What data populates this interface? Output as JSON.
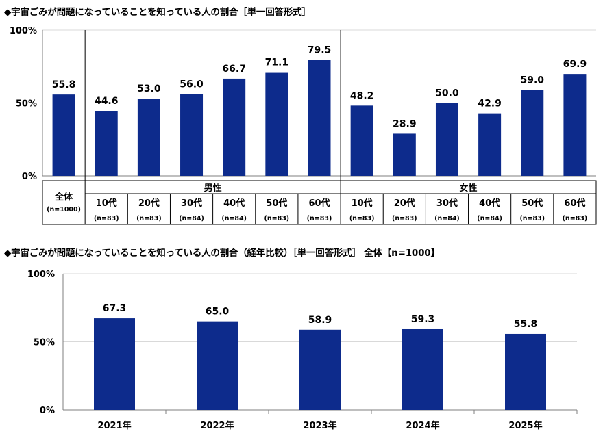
{
  "chart1_title": "◆宇宙ごみが問題になっていることを知っている人の割合［単一回答形式］",
  "chart2_title": "◆宇宙ごみが問題になっていることを知っている人の割合（経年比較）［単一回答形式］ 全体【n=1000】",
  "colors": {
    "bar": "#0d2b8c",
    "grid": "#d9d9d9",
    "axis": "#7f7f7f",
    "divider": "#000000"
  },
  "chart_data": [
    {
      "type": "bar",
      "y_ticks": [
        "0%",
        "50%",
        "100%"
      ],
      "ylim": [
        0,
        100
      ],
      "grid": true,
      "overall": {
        "label": "全体",
        "n": "(n=1000)",
        "value": 55.8,
        "value_label": "55.8"
      },
      "groups": [
        {
          "name": "男性",
          "categories": [
            "10代",
            "20代",
            "30代",
            "40代",
            "50代",
            "60代"
          ],
          "n": [
            "(n=83)",
            "(n=83)",
            "(n=84)",
            "(n=84)",
            "(n=83)",
            "(n=83)"
          ],
          "values": [
            44.6,
            53.0,
            56.0,
            66.7,
            71.1,
            79.5
          ],
          "value_labels": [
            "44.6",
            "53.0",
            "56.0",
            "66.7",
            "71.1",
            "79.5"
          ]
        },
        {
          "name": "女性",
          "categories": [
            "10代",
            "20代",
            "30代",
            "40代",
            "50代",
            "60代"
          ],
          "n": [
            "(n=83)",
            "(n=83)",
            "(n=84)",
            "(n=84)",
            "(n=83)",
            "(n=83)"
          ],
          "values": [
            48.2,
            28.9,
            50.0,
            42.9,
            59.0,
            69.9
          ],
          "value_labels": [
            "48.2",
            "28.9",
            "50.0",
            "42.9",
            "59.0",
            "69.9"
          ]
        }
      ]
    },
    {
      "type": "bar",
      "y_ticks": [
        "0%",
        "50%",
        "100%"
      ],
      "ylim": [
        0,
        100
      ],
      "grid": true,
      "categories": [
        "2021年",
        "2022年",
        "2023年",
        "2024年",
        "2025年"
      ],
      "values": [
        67.3,
        65.0,
        58.9,
        59.3,
        55.8
      ],
      "value_labels": [
        "67.3",
        "65.0",
        "58.9",
        "59.3",
        "55.8"
      ]
    }
  ]
}
